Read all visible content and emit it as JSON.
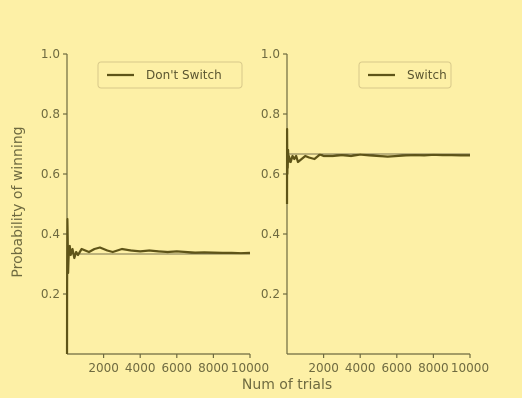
{
  "chart_data": [
    {
      "type": "line",
      "panel": "left",
      "ylabel": "Probability of winning",
      "xlabel": "",
      "xlim": [
        0,
        10000
      ],
      "ylim": [
        0,
        1.0
      ],
      "xticks": [
        "2000",
        "4000",
        "6000",
        "8000",
        "10000"
      ],
      "yticks": [
        "0.2",
        "0.4",
        "0.6",
        "0.8",
        "1.0"
      ],
      "legend_position": "top-right",
      "reference_value": 0.3333,
      "series": [
        {
          "name": "Don't Switch",
          "color": "#5e5418",
          "x": [
            1,
            5,
            10,
            20,
            30,
            40,
            60,
            80,
            100,
            150,
            200,
            300,
            400,
            500,
            600,
            800,
            1000,
            1200,
            1500,
            1800,
            2000,
            2200,
            2500,
            3000,
            3500,
            4000,
            4500,
            5000,
            5500,
            6000,
            6500,
            7000,
            7500,
            8000,
            8500,
            9000,
            9500,
            10000
          ],
          "y": [
            0.0,
            0.2,
            0.3,
            0.45,
            0.42,
            0.38,
            0.27,
            0.31,
            0.34,
            0.36,
            0.33,
            0.35,
            0.32,
            0.34,
            0.33,
            0.35,
            0.345,
            0.34,
            0.35,
            0.355,
            0.35,
            0.345,
            0.34,
            0.35,
            0.345,
            0.342,
            0.345,
            0.342,
            0.34,
            0.342,
            0.34,
            0.338,
            0.339,
            0.338,
            0.337,
            0.337,
            0.336,
            0.337
          ]
        }
      ]
    },
    {
      "type": "line",
      "panel": "right",
      "ylabel": "",
      "xlabel": "Num of trials",
      "xlim": [
        0,
        10000
      ],
      "ylim": [
        0,
        1.0
      ],
      "xticks": [
        "2000",
        "4000",
        "6000",
        "8000",
        "10000"
      ],
      "yticks": [
        "0.2",
        "0.4",
        "0.6",
        "0.8",
        "1.0"
      ],
      "legend_position": "top-right",
      "reference_value": 0.6667,
      "series": [
        {
          "name": "Switch",
          "color": "#5e5418",
          "x": [
            1,
            5,
            10,
            20,
            30,
            40,
            60,
            80,
            100,
            150,
            200,
            300,
            400,
            500,
            600,
            800,
            1000,
            1200,
            1500,
            1800,
            2000,
            2500,
            3000,
            3500,
            4000,
            4500,
            5000,
            5500,
            6000,
            6500,
            7000,
            7500,
            8000,
            8500,
            9000,
            9500,
            10000
          ],
          "y": [
            0.5,
            0.75,
            0.7,
            0.6,
            0.66,
            0.62,
            0.68,
            0.64,
            0.66,
            0.65,
            0.64,
            0.66,
            0.65,
            0.66,
            0.64,
            0.65,
            0.66,
            0.655,
            0.65,
            0.665,
            0.66,
            0.66,
            0.663,
            0.66,
            0.665,
            0.662,
            0.66,
            0.658,
            0.66,
            0.662,
            0.663,
            0.662,
            0.664,
            0.663,
            0.663,
            0.662,
            0.662
          ]
        }
      ]
    }
  ]
}
